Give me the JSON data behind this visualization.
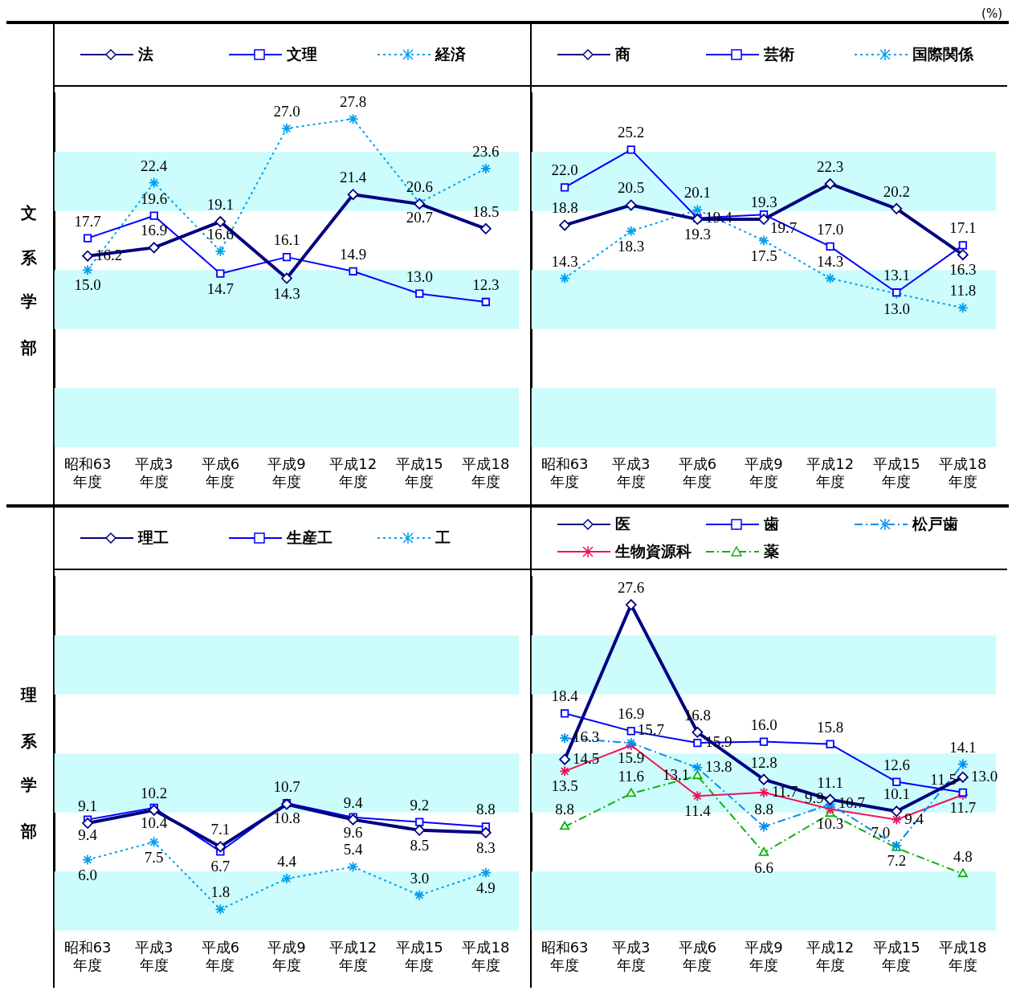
{
  "chart_data": [
    {
      "type": "line",
      "ylabel": "文系学部",
      "categories": [
        "昭和63\n年度",
        "平成3\n年度",
        "平成6\n年度",
        "平成9\n年度",
        "平成12\n年度",
        "平成15\n年度",
        "平成18\n年度"
      ],
      "ylim": [
        0,
        30
      ],
      "tick_labels": "x",
      "legend": "top",
      "bands": [
        {
          "axis": "y",
          "from": 0,
          "to": 5,
          "color": "#ccfcfc"
        },
        {
          "axis": "y",
          "from": 10,
          "to": 15,
          "color": "#ccfcfc"
        },
        {
          "axis": "y",
          "from": 20,
          "to": 25,
          "color": "#ccfcfc"
        }
      ],
      "series": [
        {
          "name": "法",
          "color": "#000080",
          "marker": "diamond",
          "line_style": "solid",
          "values": [
            16.2,
            16.9,
            19.1,
            14.3,
            21.4,
            20.6,
            18.5
          ],
          "value_labels": [
            "16.2",
            "16.9",
            "19.1",
            "14.3",
            "21.4",
            "20.6",
            "18.5"
          ]
        },
        {
          "name": "文理",
          "color": "#0000ff",
          "marker": "square",
          "line_style": "solid",
          "values": [
            17.7,
            19.6,
            14.7,
            16.1,
            14.9,
            13.0,
            12.3
          ],
          "value_labels": [
            "17.7",
            "19.6",
            "14.7",
            "16.1",
            "14.9",
            "13.0",
            "12.3"
          ]
        },
        {
          "name": "経済",
          "color": "#00a0f0",
          "marker": "cross",
          "line_style": "dotted",
          "values": [
            15.0,
            22.4,
            16.6,
            27.0,
            27.8,
            20.7,
            23.6
          ],
          "value_labels": [
            "15.0",
            "22.4",
            "16.6",
            "27.0",
            "27.8",
            "20.7",
            "23.6"
          ]
        }
      ]
    },
    {
      "type": "line",
      "annotations": [
        "(%)"
      ],
      "categories": [
        "昭和63\n年度",
        "平成3\n年度",
        "平成6\n年度",
        "平成9\n年度",
        "平成12\n年度",
        "平成15\n年度",
        "平成18\n年度"
      ],
      "ylim": [
        0,
        30
      ],
      "tick_labels": "x",
      "legend": "top",
      "bands": [
        {
          "axis": "y",
          "from": 0,
          "to": 5,
          "color": "#ccfcfc"
        },
        {
          "axis": "y",
          "from": 10,
          "to": 15,
          "color": "#ccfcfc"
        },
        {
          "axis": "y",
          "from": 20,
          "to": 25,
          "color": "#ccfcfc"
        }
      ],
      "series": [
        {
          "name": "商",
          "color": "#000080",
          "marker": "diamond",
          "line_style": "solid",
          "values": [
            18.8,
            20.5,
            19.3,
            19.3,
            22.3,
            20.2,
            16.3
          ],
          "value_labels": [
            "18.8",
            "20.5",
            "19.3",
            "19.3",
            "22.3",
            "20.2",
            "16.3"
          ]
        },
        {
          "name": "芸術",
          "color": "#0000ff",
          "marker": "square",
          "line_style": "solid",
          "values": [
            22.0,
            25.2,
            19.4,
            19.7,
            17.0,
            13.1,
            17.1
          ],
          "value_labels": [
            "22.0",
            "25.2",
            "19.4",
            "19.7",
            "17.0",
            "13.1",
            "17.1"
          ]
        },
        {
          "name": "国際関係",
          "color": "#00a0f0",
          "marker": "cross",
          "line_style": "dotted",
          "values": [
            14.3,
            18.3,
            20.1,
            17.5,
            14.3,
            13.0,
            11.8
          ],
          "value_labels": [
            "14.3",
            "18.3",
            "20.1",
            "17.5",
            "14.3",
            "13.0",
            "11.8"
          ]
        }
      ]
    },
    {
      "type": "line",
      "ylabel": "理系学部",
      "categories": [
        "昭和63\n年度",
        "平成3\n年度",
        "平成6\n年度",
        "平成9\n年度",
        "平成12\n年度",
        "平成15\n年度",
        "平成18\n年度"
      ],
      "ylim": [
        0,
        30
      ],
      "tick_labels": "x",
      "legend": "top",
      "bands": [
        {
          "axis": "y",
          "from": 0,
          "to": 5,
          "color": "#ccfcfc"
        },
        {
          "axis": "y",
          "from": 10,
          "to": 15,
          "color": "#ccfcfc"
        },
        {
          "axis": "y",
          "from": 20,
          "to": 25,
          "color": "#ccfcfc"
        }
      ],
      "series": [
        {
          "name": "理工",
          "color": "#000080",
          "marker": "diamond",
          "line_style": "solid",
          "values": [
            9.1,
            10.2,
            7.1,
            10.7,
            9.4,
            8.5,
            8.3
          ],
          "value_labels": [
            "9.1",
            "10.2",
            "7.1",
            "10.7",
            "9.4",
            "8.5",
            "8.3"
          ]
        },
        {
          "name": "生産工",
          "color": "#0000ff",
          "marker": "square",
          "line_style": "solid",
          "values": [
            9.4,
            10.4,
            6.7,
            10.8,
            9.6,
            9.2,
            8.8
          ],
          "value_labels": [
            "9.4",
            "10.4",
            "6.7",
            "10.8",
            "9.6",
            "9.2",
            "8.8"
          ]
        },
        {
          "name": "工",
          "color": "#00a0f0",
          "marker": "cross",
          "line_style": "dotted",
          "values": [
            6.0,
            7.5,
            1.8,
            4.4,
            5.4,
            3.0,
            4.9
          ],
          "value_labels": [
            "6.0",
            "7.5",
            "1.8",
            "4.4",
            "5.4",
            "3.0",
            "4.9"
          ]
        }
      ]
    },
    {
      "type": "line",
      "categories": [
        "昭和63\n年度",
        "平成3\n年度",
        "平成6\n年度",
        "平成9\n年度",
        "平成12\n年度",
        "平成15\n年度",
        "平成18\n年度"
      ],
      "ylim": [
        0,
        30
      ],
      "tick_labels": "x",
      "legend": "top",
      "bands": [
        {
          "axis": "y",
          "from": 0,
          "to": 5,
          "color": "#ccfcfc"
        },
        {
          "axis": "y",
          "from": 10,
          "to": 15,
          "color": "#ccfcfc"
        },
        {
          "axis": "y",
          "from": 20,
          "to": 25,
          "color": "#ccfcfc"
        }
      ],
      "series": [
        {
          "name": "医",
          "color": "#000080",
          "marker": "diamond",
          "line_style": "solid",
          "values": [
            14.5,
            27.6,
            16.8,
            12.8,
            11.1,
            10.1,
            13.0
          ],
          "value_labels": [
            "14.5",
            "27.6",
            "16.8",
            "12.8",
            "11.1",
            "10.1",
            "13.0"
          ]
        },
        {
          "name": "歯",
          "color": "#0000ff",
          "marker": "square",
          "line_style": "solid",
          "values": [
            18.4,
            16.9,
            15.9,
            16.0,
            15.8,
            12.6,
            11.7
          ],
          "value_labels": [
            "18.4",
            "16.9",
            "15.9",
            "16.0",
            "15.8",
            "12.6",
            "11.7"
          ]
        },
        {
          "name": "松戸歯",
          "color": "#0090f0",
          "marker": "cross",
          "line_style": "dashed",
          "values": [
            16.3,
            15.9,
            13.8,
            8.8,
            10.7,
            7.2,
            14.1
          ],
          "value_labels": [
            "16.3",
            "15.9",
            "13.8",
            "8.8",
            "10.7",
            "7.2",
            "14.1"
          ]
        },
        {
          "name": "生物資源科",
          "color": "#f0105a",
          "marker": "cross",
          "line_style": "solid",
          "values": [
            13.5,
            15.7,
            11.4,
            11.7,
            10.3,
            9.4,
            11.5
          ],
          "value_labels": [
            "13.5",
            "15.7",
            "11.4",
            "11.7",
            "10.3",
            "9.4",
            "11.5"
          ]
        },
        {
          "name": "薬",
          "color": "#10b010",
          "marker": "triangle",
          "line_style": "dashed",
          "values": [
            8.8,
            11.6,
            13.1,
            6.6,
            9.9,
            7.0,
            4.8
          ],
          "value_labels": [
            "8.8",
            "11.6",
            "13.1",
            "6.6",
            "9.9",
            "7.0",
            "4.8"
          ]
        }
      ]
    }
  ]
}
